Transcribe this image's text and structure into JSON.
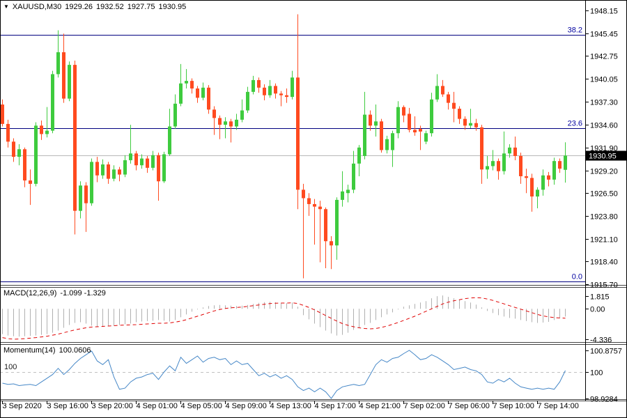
{
  "header": {
    "symbol": "XAUUSD,M30",
    "open": "1929.26",
    "high": "1932.52",
    "low": "1927.75",
    "close": "1930.95"
  },
  "icons": {
    "collapse_arrow": "▼"
  },
  "indicator_labels": {
    "macd_name": "MACD(12,26,9)",
    "macd_values": "-1.099 -1.329",
    "momentum_name": "Momentum(14)",
    "momentum_value": "100.0606",
    "momentum_level": "100"
  },
  "colors": {
    "bull": "#3ecb3e",
    "bear": "#ff4a1f",
    "fib_line": "#000080",
    "fib_text": "#0000a0",
    "price_line": "#b8b8b8",
    "price_tag_bg": "#000000",
    "price_tag_text": "#ffffff",
    "macd_hist": "#b0b0b0",
    "macd_signal": "#e00000",
    "momentum_line": "#4587c7",
    "level_dash": "#c0c0c0",
    "axis_text": "#000000",
    "border": "#000000",
    "separator": "#444444"
  },
  "chart_data": {
    "type": "candlestick",
    "symbol": "XAUUSD",
    "timeframe": "M30",
    "current_bar": {
      "open": 1929.26,
      "high": 1932.52,
      "low": 1927.75,
      "close": 1930.95
    },
    "price_axis": {
      "ticks": [
        "1948.15",
        "1945.45",
        "1942.75",
        "1940.05",
        "1937.30",
        "1934.60",
        "1931.90",
        "1929.20",
        "1926.50",
        "1923.80",
        "1921.10",
        "1918.40",
        "1915.70"
      ],
      "current_price": 1930.95,
      "current_price_label": "1930.95"
    },
    "fib_levels": [
      {
        "label": "38.2",
        "price": 1945.25
      },
      {
        "label": "23.6",
        "price": 1934.2
      },
      {
        "label": "0.0",
        "price": 1916.05
      }
    ],
    "time_labels": [
      {
        "index": 0,
        "label": "3 Sep 2020"
      },
      {
        "index": 8,
        "label": "3 Sep 16:00"
      },
      {
        "index": 16,
        "label": "3 Sep 20:00"
      },
      {
        "index": 24,
        "label": "4 Sep 01:00"
      },
      {
        "index": 32,
        "label": "4 Sep 05:00"
      },
      {
        "index": 40,
        "label": "4 Sep 09:00"
      },
      {
        "index": 48,
        "label": "4 Sep 13:00"
      },
      {
        "index": 56,
        "label": "4 Sep 17:00"
      },
      {
        "index": 64,
        "label": "4 Sep 21:00"
      },
      {
        "index": 72,
        "label": "7 Sep 02:00"
      },
      {
        "index": 80,
        "label": "7 Sep 06:00"
      },
      {
        "index": 88,
        "label": "7 Sep 10:00"
      },
      {
        "index": 96,
        "label": "7 Sep 14:00"
      }
    ],
    "candles": [
      [
        1937.0,
        1937.6,
        1934.4,
        1934.7
      ],
      [
        1934.7,
        1935.2,
        1931.9,
        1932.6
      ],
      [
        1932.6,
        1933.0,
        1930.2,
        1930.8
      ],
      [
        1930.8,
        1932.3,
        1929.8,
        1931.7
      ],
      [
        1931.7,
        1931.9,
        1927.2,
        1928.0
      ],
      [
        1928.0,
        1929.3,
        1925.1,
        1927.6
      ],
      [
        1927.6,
        1934.9,
        1927.3,
        1934.5
      ],
      [
        1934.5,
        1935.1,
        1932.8,
        1933.5
      ],
      [
        1933.5,
        1936.7,
        1933.1,
        1933.9
      ],
      [
        1933.9,
        1941.0,
        1933.6,
        1940.6
      ],
      [
        1940.6,
        1945.8,
        1940.2,
        1943.2
      ],
      [
        1943.2,
        1945.4,
        1937.2,
        1937.7
      ],
      [
        1937.7,
        1942.1,
        1937.4,
        1941.7
      ],
      [
        1941.7,
        1942.2,
        1921.6,
        1924.4
      ],
      [
        1924.4,
        1927.9,
        1923.5,
        1927.4
      ],
      [
        1927.4,
        1927.8,
        1921.9,
        1925.3
      ],
      [
        1925.3,
        1930.6,
        1925.0,
        1930.2
      ],
      [
        1930.2,
        1930.8,
        1927.8,
        1928.6
      ],
      [
        1928.6,
        1930.5,
        1928.2,
        1929.9
      ],
      [
        1929.9,
        1930.2,
        1927.6,
        1928.2
      ],
      [
        1928.2,
        1929.8,
        1927.9,
        1929.3
      ],
      [
        1929.3,
        1929.6,
        1927.9,
        1928.7
      ],
      [
        1928.7,
        1931.0,
        1928.4,
        1930.4
      ],
      [
        1930.4,
        1934.6,
        1930.0,
        1931.2
      ],
      [
        1931.2,
        1931.5,
        1929.2,
        1929.8
      ],
      [
        1929.8,
        1931.1,
        1929.4,
        1930.6
      ],
      [
        1930.6,
        1930.9,
        1928.9,
        1929.5
      ],
      [
        1929.5,
        1931.5,
        1929.2,
        1931.0
      ],
      [
        1931.0,
        1931.3,
        1925.6,
        1927.9
      ],
      [
        1927.9,
        1931.4,
        1927.7,
        1931.1
      ],
      [
        1931.1,
        1936.5,
        1930.9,
        1934.4
      ],
      [
        1934.4,
        1938.2,
        1934.1,
        1937.1
      ],
      [
        1937.1,
        1941.8,
        1936.8,
        1939.5
      ],
      [
        1939.5,
        1941.2,
        1938.9,
        1939.8
      ],
      [
        1939.8,
        1940.1,
        1938.3,
        1938.9
      ],
      [
        1938.9,
        1939.2,
        1937.2,
        1937.8
      ],
      [
        1937.8,
        1939.6,
        1937.5,
        1939.0
      ],
      [
        1939.0,
        1939.3,
        1935.9,
        1936.4
      ],
      [
        1936.4,
        1936.8,
        1933.4,
        1935.4
      ],
      [
        1935.4,
        1935.7,
        1932.9,
        1934.6
      ],
      [
        1934.6,
        1935.5,
        1933.0,
        1935.0
      ],
      [
        1935.0,
        1935.3,
        1932.5,
        1934.4
      ],
      [
        1934.4,
        1935.9,
        1934.0,
        1935.2
      ],
      [
        1935.2,
        1937.6,
        1934.9,
        1936.3
      ],
      [
        1936.3,
        1939.1,
        1936.0,
        1938.5
      ],
      [
        1938.5,
        1940.4,
        1938.2,
        1939.9
      ],
      [
        1939.9,
        1940.2,
        1938.4,
        1939.0
      ],
      [
        1939.0,
        1939.4,
        1937.5,
        1938.1
      ],
      [
        1938.1,
        1939.9,
        1937.8,
        1939.2
      ],
      [
        1939.2,
        1939.5,
        1937.7,
        1938.3
      ],
      [
        1938.3,
        1938.6,
        1936.8,
        1938.1
      ],
      [
        1938.1,
        1938.9,
        1937.2,
        1937.9
      ],
      [
        1937.9,
        1941.0,
        1937.6,
        1940.2
      ],
      [
        1940.2,
        1947.7,
        1924.6,
        1926.9
      ],
      [
        1926.9,
        1927.6,
        1916.4,
        1925.9
      ],
      [
        1925.9,
        1926.5,
        1923.8,
        1925.2
      ],
      [
        1925.2,
        1925.8,
        1920.4,
        1924.9
      ],
      [
        1924.9,
        1925.6,
        1918.3,
        1924.6
      ],
      [
        1924.6,
        1924.8,
        1917.6,
        1920.8
      ],
      [
        1920.8,
        1921.4,
        1917.5,
        1920.3
      ],
      [
        1920.3,
        1926.0,
        1918.6,
        1925.7
      ],
      [
        1925.7,
        1929.1,
        1924.9,
        1926.7
      ],
      [
        1926.5,
        1927.5,
        1925.4,
        1926.9
      ],
      [
        1926.9,
        1931.5,
        1926.5,
        1930.0
      ],
      [
        1930.0,
        1932.2,
        1928.5,
        1931.9
      ],
      [
        1930.9,
        1938.5,
        1930.5,
        1935.8
      ],
      [
        1935.8,
        1936.3,
        1933.9,
        1934.5
      ],
      [
        1934.5,
        1937.0,
        1933.2,
        1935.0
      ],
      [
        1935.0,
        1935.3,
        1931.3,
        1931.6
      ],
      [
        1931.6,
        1933.3,
        1931.2,
        1932.9
      ],
      [
        1931.6,
        1933.9,
        1929.6,
        1933.6
      ],
      [
        1933.6,
        1937.4,
        1933.0,
        1936.7
      ],
      [
        1936.7,
        1936.9,
        1934.9,
        1935.7
      ],
      [
        1935.9,
        1936.6,
        1933.7,
        1934.0
      ],
      [
        1934.0,
        1935.6,
        1933.3,
        1933.7
      ],
      [
        1934.1,
        1934.5,
        1931.6,
        1933.8
      ],
      [
        1932.6,
        1933.9,
        1932.3,
        1933.6
      ],
      [
        1933.6,
        1938.4,
        1933.2,
        1937.6
      ],
      [
        1937.6,
        1940.6,
        1937.3,
        1939.2
      ],
      [
        1939.2,
        1939.9,
        1937.9,
        1938.2
      ],
      [
        1938.2,
        1938.5,
        1936.4,
        1937.2
      ],
      [
        1937.2,
        1938.5,
        1934.9,
        1936.5
      ],
      [
        1936.5,
        1936.8,
        1934.7,
        1935.3
      ],
      [
        1935.3,
        1935.6,
        1934.0,
        1934.5
      ],
      [
        1934.5,
        1936.5,
        1934.2,
        1934.8
      ],
      [
        1934.8,
        1935.3,
        1933.9,
        1934.3
      ],
      [
        1934.3,
        1934.6,
        1927.6,
        1929.3
      ],
      [
        1929.3,
        1930.9,
        1928.2,
        1929.7
      ],
      [
        1929.7,
        1931.6,
        1929.2,
        1930.3
      ],
      [
        1930.3,
        1930.6,
        1928.1,
        1929.1
      ],
      [
        1929.1,
        1933.8,
        1928.7,
        1931.2
      ],
      [
        1931.2,
        1932.3,
        1930.7,
        1931.9
      ],
      [
        1931.9,
        1933.2,
        1930.4,
        1930.9
      ],
      [
        1930.9,
        1931.3,
        1927.6,
        1928.5
      ],
      [
        1928.5,
        1929.4,
        1926.5,
        1928.3
      ],
      [
        1928.3,
        1928.8,
        1924.3,
        1926.1
      ],
      [
        1926.1,
        1927.2,
        1924.7,
        1926.9
      ],
      [
        1926.9,
        1929.3,
        1926.2,
        1928.6
      ],
      [
        1928.6,
        1929.0,
        1927.3,
        1928.1
      ],
      [
        1928.1,
        1930.7,
        1927.5,
        1930.3
      ],
      [
        1930.3,
        1930.6,
        1928.9,
        1929.4
      ],
      [
        1929.26,
        1932.52,
        1927.75,
        1930.95
      ]
    ],
    "indicators": {
      "macd": {
        "name": "MACD(12,26,9)",
        "current_values": [
          -1.099,
          -1.329
        ],
        "axis": [
          "1.815",
          "0.00",
          "-4.336"
        ],
        "axis_values": [
          1.815,
          0.0,
          -4.336
        ],
        "histogram": [
          -3.6,
          -3.8,
          -3.9,
          -3.95,
          -3.9,
          -3.85,
          -3.8,
          -3.7,
          -3.6,
          -3.4,
          -3.1,
          -2.7,
          -2.3,
          -2.0,
          -1.9,
          -2.1,
          -2.4,
          -2.5,
          -2.55,
          -2.5,
          -2.4,
          -2.3,
          -2.2,
          -2.1,
          -1.9,
          -1.8,
          -1.75,
          -1.7,
          -1.6,
          -1.7,
          -1.8,
          -1.6,
          -1.2,
          -0.8,
          -0.4,
          -0.1,
          0.2,
          0.4,
          0.5,
          0.55,
          0.5,
          0.45,
          0.4,
          0.45,
          0.55,
          0.7,
          0.85,
          0.95,
          1.0,
          0.95,
          0.85,
          0.8,
          0.9,
          0.3,
          -0.9,
          -1.5,
          -2.1,
          -2.6,
          -3.1,
          -3.5,
          -3.8,
          -3.7,
          -3.4,
          -3.0,
          -2.7,
          -2.3,
          -2.0,
          -1.6,
          -1.2,
          -0.8,
          -0.5,
          -0.1,
          0.3,
          0.5,
          0.7,
          0.9,
          1.1,
          1.5,
          1.8,
          1.9,
          1.7,
          1.5,
          1.3,
          1.1,
          0.9,
          0.6,
          0.2,
          -0.3,
          -0.6,
          -0.9,
          -1.1,
          -1.3,
          -1.4,
          -1.6,
          -1.75,
          -1.9,
          -2.0,
          -1.95,
          -1.85,
          -1.6,
          -1.35,
          -1.099
        ],
        "signal": [
          -4.1,
          -4.25,
          -4.33,
          -4.3,
          -4.25,
          -4.18,
          -4.1,
          -4.0,
          -3.9,
          -3.75,
          -3.6,
          -3.4,
          -3.2,
          -3.0,
          -2.85,
          -2.7,
          -2.6,
          -2.55,
          -2.5,
          -2.45,
          -2.4,
          -2.35,
          -2.3,
          -2.28,
          -2.25,
          -2.2,
          -2.15,
          -2.1,
          -2.05,
          -2.05,
          -2.0,
          -1.9,
          -1.75,
          -1.55,
          -1.3,
          -1.05,
          -0.8,
          -0.55,
          -0.3,
          -0.1,
          0.05,
          0.15,
          0.2,
          0.25,
          0.35,
          0.45,
          0.55,
          0.65,
          0.75,
          0.8,
          0.82,
          0.82,
          0.85,
          0.75,
          0.5,
          0.2,
          -0.15,
          -0.55,
          -0.95,
          -1.35,
          -1.75,
          -2.1,
          -2.35,
          -2.55,
          -2.7,
          -2.8,
          -2.85,
          -2.8,
          -2.65,
          -2.45,
          -2.2,
          -1.95,
          -1.65,
          -1.35,
          -1.05,
          -0.7,
          -0.35,
          0.0,
          0.35,
          0.7,
          0.95,
          1.15,
          1.3,
          1.45,
          1.55,
          1.6,
          1.55,
          1.4,
          1.2,
          0.95,
          0.7,
          0.45,
          0.2,
          -0.05,
          -0.3,
          -0.55,
          -0.8,
          -1.0,
          -1.15,
          -1.25,
          -1.3,
          -1.329
        ]
      },
      "momentum": {
        "name": "Momentum(14)",
        "current_value": 100.0606,
        "axis": [
          "100.8757",
          "100",
          "98.9284"
        ],
        "axis_values": [
          100.8757,
          100.0,
          98.9284
        ],
        "level": 100,
        "values": [
          99.55,
          99.5,
          99.52,
          99.45,
          99.48,
          99.5,
          99.45,
          99.6,
          99.75,
          99.9,
          100.15,
          99.9,
          100.1,
          100.35,
          100.55,
          100.7,
          100.85,
          100.45,
          100.3,
          100.5,
          99.8,
          99.3,
          99.35,
          99.6,
          99.75,
          99.8,
          99.9,
          99.95,
          99.7,
          100.0,
          100.25,
          100.05,
          100.6,
          100.35,
          100.5,
          100.65,
          100.4,
          100.55,
          100.6,
          100.5,
          100.55,
          100.3,
          100.45,
          100.3,
          100.35,
          100.1,
          99.85,
          99.95,
          99.8,
          99.9,
          99.75,
          99.85,
          99.7,
          99.4,
          99.25,
          99.35,
          99.2,
          99.35,
          99.2,
          98.93,
          99.25,
          99.4,
          99.45,
          99.5,
          99.45,
          99.5,
          99.9,
          100.3,
          100.5,
          100.4,
          100.55,
          100.6,
          100.75,
          100.88,
          100.7,
          100.5,
          100.55,
          100.7,
          100.6,
          100.45,
          100.3,
          100.1,
          100.15,
          100.2,
          100.1,
          100.05,
          99.9,
          99.6,
          99.55,
          99.7,
          99.6,
          99.75,
          99.55,
          99.4,
          99.35,
          99.3,
          99.35,
          99.3,
          99.35,
          99.3,
          99.6,
          100.06
        ]
      }
    }
  }
}
